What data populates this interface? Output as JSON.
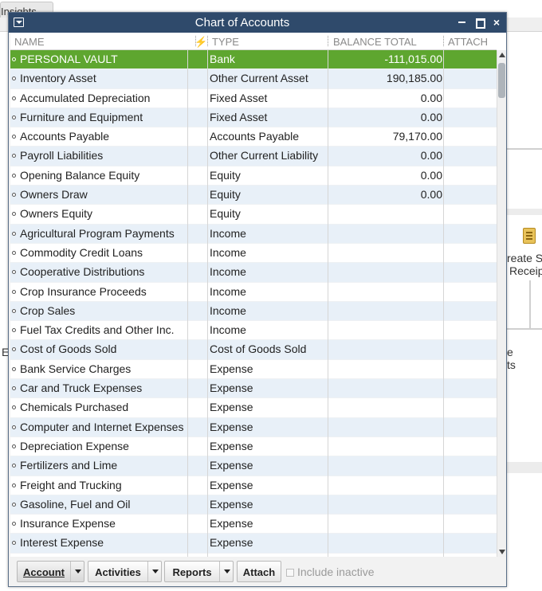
{
  "background": {
    "tab_label": "Insights",
    "right_text_1": "reate S",
    "right_text_2": "Receip",
    "right_text_3": "e",
    "right_text_4": "ts",
    "left_text": "E"
  },
  "window": {
    "title": "Chart of Accounts"
  },
  "table": {
    "columns": {
      "name": "NAME",
      "flag": "⚡",
      "type": "TYPE",
      "balance": "BALANCE TOTAL",
      "attach": "ATTACH"
    },
    "rows": [
      {
        "name": "PERSONAL VAULT",
        "type": "Bank",
        "balance": "-111,015.00"
      },
      {
        "name": "Inventory Asset",
        "type": "Other Current Asset",
        "balance": "190,185.00"
      },
      {
        "name": "Accumulated Depreciation",
        "type": "Fixed Asset",
        "balance": "0.00"
      },
      {
        "name": "Furniture and Equipment",
        "type": "Fixed Asset",
        "balance": "0.00"
      },
      {
        "name": "Accounts Payable",
        "type": "Accounts Payable",
        "balance": "79,170.00"
      },
      {
        "name": "Payroll Liabilities",
        "type": "Other Current Liability",
        "balance": "0.00"
      },
      {
        "name": "Opening Balance Equity",
        "type": "Equity",
        "balance": "0.00"
      },
      {
        "name": "Owners Draw",
        "type": "Equity",
        "balance": "0.00"
      },
      {
        "name": "Owners Equity",
        "type": "Equity",
        "balance": ""
      },
      {
        "name": "Agricultural Program Payments",
        "type": "Income",
        "balance": ""
      },
      {
        "name": "Commodity Credit Loans",
        "type": "Income",
        "balance": ""
      },
      {
        "name": "Cooperative Distributions",
        "type": "Income",
        "balance": ""
      },
      {
        "name": "Crop Insurance Proceeds",
        "type": "Income",
        "balance": ""
      },
      {
        "name": "Crop Sales",
        "type": "Income",
        "balance": ""
      },
      {
        "name": "Fuel Tax Credits and Other Inc.",
        "type": "Income",
        "balance": ""
      },
      {
        "name": "Cost of Goods Sold",
        "type": "Cost of Goods Sold",
        "balance": ""
      },
      {
        "name": "Bank Service Charges",
        "type": "Expense",
        "balance": ""
      },
      {
        "name": "Car and Truck Expenses",
        "type": "Expense",
        "balance": ""
      },
      {
        "name": "Chemicals Purchased",
        "type": "Expense",
        "balance": ""
      },
      {
        "name": "Computer and Internet Expenses",
        "type": "Expense",
        "balance": ""
      },
      {
        "name": "Depreciation Expense",
        "type": "Expense",
        "balance": ""
      },
      {
        "name": "Fertilizers and Lime",
        "type": "Expense",
        "balance": ""
      },
      {
        "name": "Freight and Trucking",
        "type": "Expense",
        "balance": ""
      },
      {
        "name": "Gasoline, Fuel and Oil",
        "type": "Expense",
        "balance": ""
      },
      {
        "name": "Insurance Expense",
        "type": "Expense",
        "balance": ""
      },
      {
        "name": "Interest Expense",
        "type": "Expense",
        "balance": ""
      }
    ],
    "selected_index": 0
  },
  "footer": {
    "account_label": "Account",
    "activities_label": "Activities",
    "reports_label": "Reports",
    "attach_label": "Attach",
    "include_inactive_label": "Include inactive"
  },
  "colors": {
    "titlebar": "#2f4a6b",
    "selected_row": "#5ea62f",
    "alt_row": "#e8f0f8"
  }
}
